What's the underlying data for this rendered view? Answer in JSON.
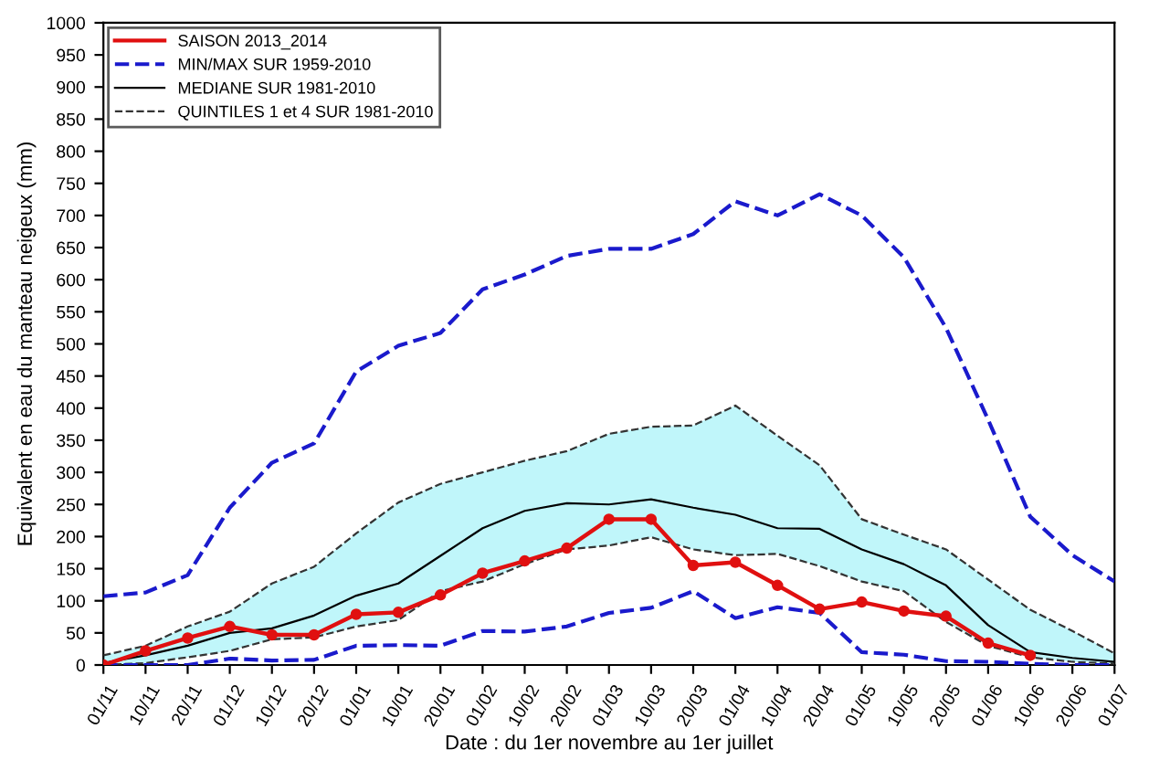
{
  "chart_data": {
    "type": "line",
    "xlabel": "Date : du 1er novembre au 1er juillet",
    "ylabel": "Equivalent en eau du manteau neigeux (mm)",
    "categories": [
      "01/11",
      "10/11",
      "20/11",
      "01/12",
      "10/12",
      "20/12",
      "01/01",
      "10/01",
      "20/01",
      "01/02",
      "10/02",
      "20/02",
      "01/03",
      "10/03",
      "20/03",
      "01/04",
      "10/04",
      "20/04",
      "01/05",
      "10/05",
      "20/05",
      "01/06",
      "10/06",
      "20/06",
      "01/07"
    ],
    "ylim": [
      0,
      1000
    ],
    "yticks": [
      0,
      50,
      100,
      150,
      200,
      250,
      300,
      350,
      400,
      450,
      500,
      550,
      600,
      650,
      700,
      750,
      800,
      850,
      900,
      950,
      1000
    ],
    "grid": false,
    "legend": "top left",
    "series": [
      {
        "name": "QUINTILES 1 et 4 SUR 1981-2010",
        "color": "#333333",
        "line_style": "dashed",
        "marker": "none",
        "values": [
          15,
          30,
          60,
          83,
          127,
          153,
          205,
          253,
          282,
          300,
          318,
          333,
          360,
          371,
          373,
          404,
          357,
          311,
          227,
          203,
          180,
          133,
          86,
          53,
          18
        ],
        "lower": [
          0,
          3,
          12,
          22,
          40,
          43,
          60,
          70,
          115,
          130,
          157,
          180,
          186,
          199,
          180,
          171,
          173,
          154,
          130,
          115,
          67,
          30,
          12,
          5,
          2
        ],
        "upper": [
          15,
          30,
          60,
          83,
          127,
          153,
          205,
          253,
          282,
          300,
          318,
          333,
          360,
          371,
          373,
          404,
          357,
          311,
          227,
          203,
          180,
          133,
          86,
          53,
          18
        ]
      },
      {
        "color": "#333333",
        "line_style": "dashed",
        "marker": "none",
        "values": [
          0,
          3,
          12,
          22,
          40,
          43,
          60,
          70,
          115,
          130,
          157,
          180,
          186,
          199,
          180,
          171,
          173,
          154,
          130,
          115,
          67,
          30,
          12,
          5,
          2
        ]
      },
      {
        "name": "MEDIANE SUR 1981-2010",
        "color": "#000000",
        "line_style": "solid",
        "marker": "none",
        "values": [
          3,
          15,
          30,
          50,
          57,
          77,
          108,
          127,
          170,
          213,
          240,
          252,
          250,
          258,
          245,
          234,
          213,
          212,
          180,
          157,
          124,
          62,
          20,
          11,
          5
        ]
      },
      {
        "name": "MIN/MAX SUR 1959-2010",
        "color": "#1a1acc",
        "line_style": "dashed",
        "marker": "none",
        "values": [
          107,
          113,
          140,
          245,
          315,
          345,
          457,
          497,
          517,
          585,
          608,
          637,
          648,
          648,
          671,
          722,
          700,
          733,
          700,
          635,
          525,
          382,
          231,
          171,
          130
        ]
      },
      {
        "color": "#1a1acc",
        "line_style": "dashed",
        "marker": "none",
        "values": [
          0,
          0,
          0,
          10,
          7,
          8,
          30,
          31,
          30,
          53,
          52,
          60,
          81,
          89,
          115,
          73,
          90,
          81,
          20,
          16,
          6,
          5,
          2,
          0,
          0
        ]
      },
      {
        "name": "SAISON 2013_2014",
        "color": "#e01010",
        "line_style": "solid",
        "marker": "circle",
        "values": [
          0,
          22,
          42,
          60,
          47,
          47,
          79,
          82,
          109,
          143,
          162,
          182,
          227,
          227,
          155,
          160,
          124,
          87,
          98,
          84,
          76,
          34,
          15,
          null,
          null
        ]
      }
    ]
  }
}
